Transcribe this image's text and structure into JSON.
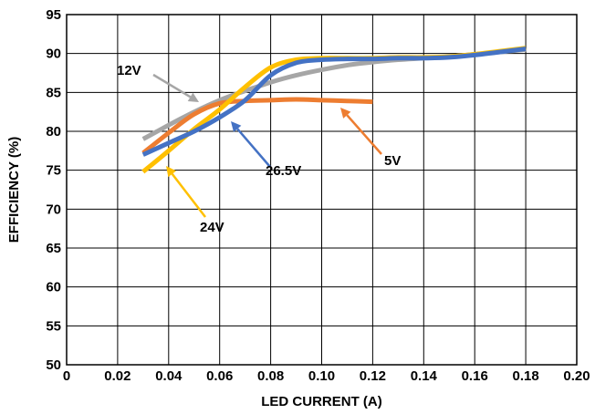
{
  "chart_data": {
    "type": "line",
    "title": "",
    "xlabel": "LED CURRENT (A)",
    "ylabel": "EFFICIENCY (%)",
    "xlim": [
      0,
      0.2
    ],
    "ylim": [
      50,
      95
    ],
    "xticks": [
      "0",
      "0.02",
      "0.04",
      "0.06",
      "0.08",
      "0.10",
      "0.12",
      "0.14",
      "0.16",
      "0.18",
      "0.20"
    ],
    "yticks": [
      "50",
      "55",
      "60",
      "65",
      "70",
      "75",
      "80",
      "85",
      "90",
      "95"
    ],
    "grid": true,
    "legend": "none",
    "series": [
      {
        "name": "12V",
        "color": "#a6a6a6",
        "x": [
          0.03,
          0.04,
          0.05,
          0.06,
          0.07,
          0.08,
          0.09,
          0.1,
          0.11,
          0.12,
          0.13,
          0.14,
          0.15,
          0.16,
          0.17,
          0.18
        ],
        "y": [
          79.0,
          80.8,
          82.5,
          84.0,
          85.2,
          86.3,
          87.2,
          87.9,
          88.5,
          88.9,
          89.2,
          89.4,
          89.6,
          89.9,
          90.2,
          90.5
        ]
      },
      {
        "name": "5V",
        "color": "#ed7d31",
        "x": [
          0.03,
          0.04,
          0.05,
          0.06,
          0.07,
          0.08,
          0.09,
          0.1,
          0.11,
          0.12
        ],
        "y": [
          77.2,
          79.8,
          82.2,
          83.6,
          83.9,
          84.0,
          84.1,
          84.0,
          83.9,
          83.8
        ]
      },
      {
        "name": "24V",
        "color": "#ffc000",
        "x": [
          0.03,
          0.04,
          0.05,
          0.06,
          0.07,
          0.08,
          0.09,
          0.1,
          0.11,
          0.12,
          0.13,
          0.14,
          0.15,
          0.16,
          0.17,
          0.18
        ],
        "y": [
          74.8,
          77.5,
          80.3,
          82.8,
          85.7,
          88.2,
          89.2,
          89.4,
          89.4,
          89.4,
          89.5,
          89.5,
          89.6,
          89.9,
          90.3,
          90.7
        ]
      },
      {
        "name": "26.5V",
        "color": "#4472c4",
        "x": [
          0.03,
          0.04,
          0.05,
          0.06,
          0.07,
          0.08,
          0.09,
          0.1,
          0.11,
          0.12,
          0.13,
          0.14,
          0.15,
          0.16,
          0.17,
          0.18
        ],
        "y": [
          77.0,
          78.5,
          80.0,
          81.8,
          84.0,
          87.2,
          88.8,
          89.2,
          89.3,
          89.3,
          89.4,
          89.4,
          89.5,
          89.8,
          90.2,
          90.6
        ]
      }
    ],
    "annotations": [
      {
        "label": "12V",
        "series": "12V"
      },
      {
        "label": "5V",
        "series": "5V"
      },
      {
        "label": "24V",
        "series": "24V"
      },
      {
        "label": "26.5V",
        "series": "26.5V"
      }
    ]
  }
}
